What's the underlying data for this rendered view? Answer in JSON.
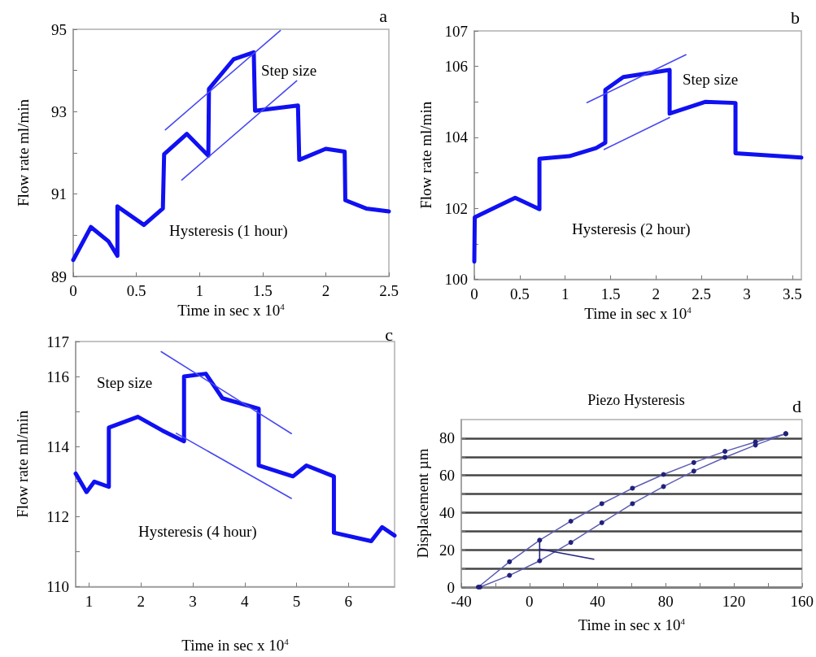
{
  "chart_data": [
    {
      "type": "line",
      "xlabel": "Time in sec x 10$^{4}$",
      "ylabel": "Flow rate ml/min",
      "xlim": [
        0,
        2.5
      ],
      "xticks": [
        0,
        0.5,
        1,
        1.5,
        2,
        2.5
      ],
      "ylim": [
        89,
        95
      ],
      "yticks": [
        89,
        {
          "value": 90,
          "label": null
        },
        91,
        {
          "value": 92,
          "label": null
        },
        93,
        {
          "value": 94,
          "label": null
        },
        95
      ],
      "marker": "none",
      "line_style": "solid",
      "series": [
        {
          "color": "#1010f2",
          "x": [
            0,
            0.14,
            0.28,
            0.35,
            0.35,
            0.56,
            0.71,
            0.72,
            0.9,
            1.07,
            1.075,
            1.27,
            1.43,
            1.44,
            1.78,
            1.79,
            2.0,
            2.15,
            2.155,
            2.32,
            2.5
          ],
          "values": [
            89.4,
            90.2,
            89.85,
            89.5,
            90.7,
            90.25,
            90.65,
            91.97,
            92.46,
            91.93,
            93.55,
            94.27,
            94.44,
            93.02,
            93.15,
            91.83,
            92.1,
            92.03,
            90.85,
            90.65,
            90.58
          ]
        },
        {
          "color": "#4848f2",
          "x": [
            0.73,
            1.64
          ],
          "values": [
            92.56,
            94.97
          ]
        },
        {
          "color": "#4848f2",
          "x": [
            0.86,
            1.77
          ],
          "values": [
            91.34,
            93.75
          ]
        }
      ],
      "annotations": [
        "a",
        "Step size",
        "Hysteresis (1 hour)"
      ]
    },
    {
      "type": "line",
      "xlabel": "Time in sec x 10$^{4}$",
      "ylabel": "Flow rate ml/min",
      "xlim": [
        0,
        3.6
      ],
      "xticks": [
        0,
        0.5,
        1,
        1.5,
        2,
        2.5,
        3,
        3.5
      ],
      "ylim": [
        100,
        107
      ],
      "yticks": [
        100,
        {
          "value": 101,
          "label": null
        },
        102,
        {
          "value": 103,
          "label": null
        },
        104,
        {
          "value": 105,
          "label": null
        },
        106,
        107
      ],
      "marker": "none",
      "line_style": "solid",
      "series": [
        {
          "color": "#1010f2",
          "x": [
            0,
            0.005,
            0.45,
            0.717,
            0.717,
            1.045,
            1.34,
            1.442,
            1.442,
            1.64,
            2.15,
            2.15,
            2.54,
            2.875,
            2.875,
            3.6
          ],
          "values": [
            100.5,
            101.75,
            102.3,
            101.98,
            103.4,
            103.47,
            103.7,
            103.85,
            105.34,
            105.7,
            105.9,
            104.67,
            105.0,
            104.97,
            103.55,
            103.43
          ]
        },
        {
          "color": "#4848f2",
          "x": [
            1.24,
            2.33
          ],
          "values": [
            104.98,
            106.33
          ]
        },
        {
          "color": "#4848f2",
          "x": [
            1.43,
            2.15
          ],
          "values": [
            103.66,
            104.56
          ]
        }
      ],
      "annotations": [
        "b",
        "Step size",
        "Hysteresis (2 hour)"
      ]
    },
    {
      "type": "line",
      "xlabel": "Time in sec x 10$^{4}$",
      "ylabel": "Flow rate ml/min",
      "xlim": [
        0.74,
        6.89
      ],
      "xticks": [
        1,
        2,
        3,
        4,
        5,
        6
      ],
      "ylim": [
        110,
        117
      ],
      "yticks": [
        110,
        {
          "value": 111,
          "label": null
        },
        112,
        {
          "value": 113,
          "label": null
        },
        114,
        {
          "value": 115,
          "label": null
        },
        116,
        117
      ],
      "marker": "none",
      "line_style": "solid",
      "series": [
        {
          "color": "#1010f2",
          "x": [
            0.74,
            0.95,
            1.1,
            1.38,
            1.38,
            1.94,
            2.41,
            2.83,
            2.83,
            3.25,
            3.57,
            4.27,
            4.27,
            4.93,
            5.19,
            5.72,
            5.72,
            6.44,
            6.65,
            6.89
          ],
          "values": [
            113.23,
            112.7,
            113.0,
            112.85,
            114.54,
            114.85,
            114.46,
            114.15,
            116.0,
            116.08,
            115.38,
            115.08,
            113.46,
            113.15,
            113.46,
            113.15,
            111.54,
            111.3,
            111.7,
            111.46
          ]
        },
        {
          "color": "#4848f2",
          "x": [
            2.39,
            4.9
          ],
          "values": [
            116.71,
            114.37
          ]
        },
        {
          "color": "#4848f2",
          "x": [
            2.68,
            4.9
          ],
          "values": [
            114.38,
            112.52
          ]
        }
      ],
      "annotations": [
        "c",
        "Step size",
        "Hysteresis (4 hour)"
      ]
    },
    {
      "type": "line",
      "title": "Piezo Hysteresis",
      "xlabel": "Time in sec x 10$^{4}$",
      "ylabel": "Displacement µm",
      "xlim": [
        -40,
        160
      ],
      "xticks": [
        -40,
        {
          "value": -20,
          "label": null
        },
        0,
        {
          "value": 20,
          "label": null
        },
        40,
        {
          "value": 60,
          "label": null
        },
        80,
        {
          "value": 100,
          "label": null
        },
        120,
        {
          "value": 140,
          "label": null
        },
        160
      ],
      "ylim": [
        0,
        90
      ],
      "yticks": [
        0,
        {
          "value": 10,
          "label": null
        },
        20,
        {
          "value": 30,
          "label": null
        },
        40,
        {
          "value": 50,
          "label": null
        },
        60,
        {
          "value": 70,
          "label": null
        },
        80
      ],
      "grid": "y",
      "marker": "circle",
      "line_style": "solid",
      "series": [
        {
          "color": "#5c5cb4",
          "x": [
            -30,
            -11.7,
            6,
            24.3,
            42.5,
            60.5,
            78.7,
            96.5,
            114.8,
            132.7,
            150.5
          ],
          "values": [
            0,
            13.6,
            25.2,
            35.4,
            44.8,
            53.1,
            60.5,
            66.9,
            72.9,
            78,
            82.4
          ]
        },
        {
          "color": "#5c5cb4",
          "x": [
            -29,
            -11.7,
            6,
            24.3,
            42.5,
            60.5,
            78.7,
            96.5,
            114.8,
            132.7,
            150.5
          ],
          "values": [
            0,
            6.3,
            14.1,
            24,
            34.6,
            44.8,
            54,
            62.3,
            69.7,
            76.3,
            82.4
          ]
        },
        {
          "color": "#23237e",
          "type": "line",
          "marker": "none",
          "x": [
            6,
            6
          ],
          "values": [
            25.2,
            14.1
          ]
        },
        {
          "color": "#23237e",
          "type": "line",
          "marker": "none",
          "x": [
            6,
            37.8
          ],
          "values": [
            20.4,
            15
          ]
        }
      ],
      "annotations": [
        "d"
      ]
    }
  ]
}
